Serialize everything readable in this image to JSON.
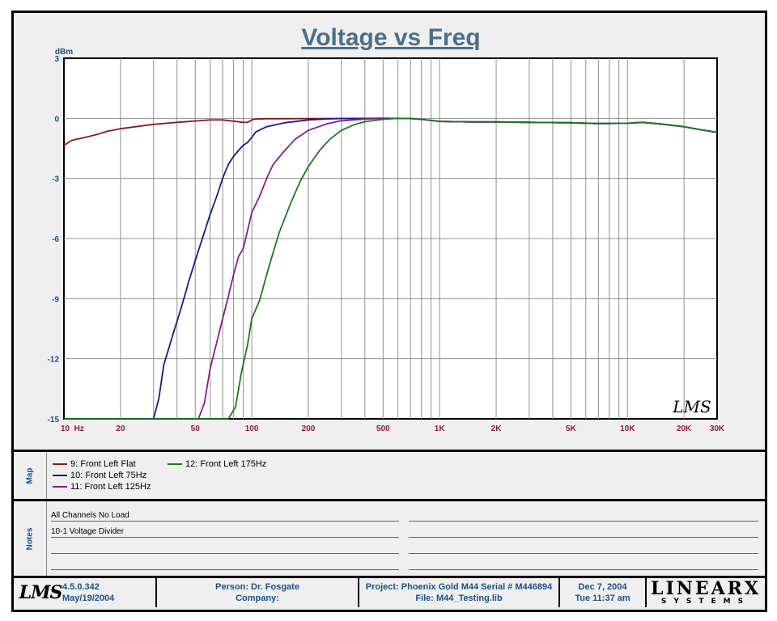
{
  "chart_data": {
    "type": "line",
    "title": "Voltage vs Freq",
    "ylabel": "dBm",
    "xlabel": "",
    "xscale": "log",
    "xlim": [
      10,
      30000
    ],
    "ylim": [
      -15,
      3
    ],
    "grid": true,
    "yticks": [
      3,
      0,
      -3,
      -6,
      -9,
      -12,
      -15
    ],
    "ytick_labels": [
      "3",
      "0",
      "-3",
      "-6",
      "-9",
      "-12",
      "-15"
    ],
    "xticks": [
      10,
      20,
      50,
      100,
      200,
      500,
      1000,
      2000,
      5000,
      10000,
      20000,
      30000
    ],
    "xtick_labels": [
      "10  Hz",
      "20",
      "50",
      "100",
      "200",
      "500",
      "1K",
      "2K",
      "5K",
      "10K",
      "20K",
      "30K"
    ],
    "series": [
      {
        "name": "9: Front Left Flat",
        "color": "#8b1a1a",
        "points": [
          [
            10,
            -1.35
          ],
          [
            11,
            -1.1
          ],
          [
            13,
            -0.95
          ],
          [
            15,
            -0.8
          ],
          [
            17,
            -0.65
          ],
          [
            20,
            -0.52
          ],
          [
            25,
            -0.4
          ],
          [
            30,
            -0.3
          ],
          [
            40,
            -0.2
          ],
          [
            50,
            -0.13
          ],
          [
            60,
            -0.08
          ],
          [
            70,
            -0.08
          ],
          [
            80,
            -0.14
          ],
          [
            90,
            -0.2
          ],
          [
            95,
            -0.2
          ],
          [
            100,
            -0.08
          ],
          [
            105,
            -0.04
          ],
          [
            120,
            -0.02
          ],
          [
            150,
            -0.02
          ],
          [
            200,
            -0.01
          ],
          [
            300,
            -0.01
          ],
          [
            500,
            0
          ],
          [
            700,
            -0.01
          ],
          [
            800,
            -0.05
          ],
          [
            1000,
            -0.15
          ],
          [
            1500,
            -0.18
          ],
          [
            2000,
            -0.18
          ],
          [
            3000,
            -0.2
          ],
          [
            5000,
            -0.22
          ],
          [
            7000,
            -0.26
          ],
          [
            10000,
            -0.25
          ],
          [
            12000,
            -0.2
          ],
          [
            15000,
            -0.28
          ],
          [
            20000,
            -0.42
          ],
          [
            25000,
            -0.58
          ],
          [
            30000,
            -0.7
          ]
        ]
      },
      {
        "name": "10: Front Left 75Hz",
        "color": "#1a1a8b",
        "points": [
          [
            30,
            -15
          ],
          [
            32,
            -14
          ],
          [
            34,
            -12.3
          ],
          [
            38,
            -10.8
          ],
          [
            42,
            -9.5
          ],
          [
            46,
            -8.2
          ],
          [
            50,
            -7.1
          ],
          [
            55,
            -5.9
          ],
          [
            60,
            -4.8
          ],
          [
            65,
            -3.9
          ],
          [
            70,
            -3.0
          ],
          [
            75,
            -2.3
          ],
          [
            80,
            -1.9
          ],
          [
            85,
            -1.6
          ],
          [
            90,
            -1.35
          ],
          [
            95,
            -1.2
          ],
          [
            100,
            -0.95
          ],
          [
            105,
            -0.68
          ],
          [
            120,
            -0.42
          ],
          [
            150,
            -0.22
          ],
          [
            200,
            -0.08
          ],
          [
            250,
            -0.03
          ],
          [
            300,
            -0.01
          ],
          [
            500,
            0
          ],
          [
            700,
            -0.01
          ],
          [
            800,
            -0.05
          ],
          [
            1000,
            -0.15
          ],
          [
            1500,
            -0.18
          ],
          [
            2000,
            -0.18
          ],
          [
            3000,
            -0.2
          ],
          [
            5000,
            -0.22
          ],
          [
            7000,
            -0.26
          ],
          [
            10000,
            -0.25
          ],
          [
            12000,
            -0.2
          ],
          [
            15000,
            -0.28
          ],
          [
            20000,
            -0.42
          ],
          [
            25000,
            -0.58
          ],
          [
            30000,
            -0.7
          ]
        ]
      },
      {
        "name": "11: Front Left 125Hz",
        "color": "#8b1a8b",
        "points": [
          [
            52,
            -15
          ],
          [
            56,
            -14.2
          ],
          [
            60,
            -12.5
          ],
          [
            65,
            -11.2
          ],
          [
            70,
            -10.0
          ],
          [
            75,
            -8.9
          ],
          [
            80,
            -7.8
          ],
          [
            85,
            -6.9
          ],
          [
            90,
            -6.5
          ],
          [
            95,
            -5.6
          ],
          [
            100,
            -4.7
          ],
          [
            110,
            -3.9
          ],
          [
            120,
            -3.0
          ],
          [
            130,
            -2.3
          ],
          [
            150,
            -1.6
          ],
          [
            170,
            -1.05
          ],
          [
            200,
            -0.6
          ],
          [
            250,
            -0.28
          ],
          [
            300,
            -0.12
          ],
          [
            400,
            -0.04
          ],
          [
            500,
            0
          ],
          [
            700,
            -0.01
          ],
          [
            800,
            -0.05
          ],
          [
            1000,
            -0.15
          ],
          [
            1500,
            -0.18
          ],
          [
            2000,
            -0.18
          ],
          [
            3000,
            -0.2
          ],
          [
            5000,
            -0.22
          ],
          [
            7000,
            -0.26
          ],
          [
            10000,
            -0.25
          ],
          [
            12000,
            -0.2
          ],
          [
            15000,
            -0.28
          ],
          [
            20000,
            -0.42
          ],
          [
            25000,
            -0.58
          ],
          [
            30000,
            -0.7
          ]
        ]
      },
      {
        "name": "12: Front Left 175Hz",
        "color": "#1a7a1a",
        "points": [
          [
            10,
            -15
          ],
          [
            75,
            -15
          ],
          [
            82,
            -14.4
          ],
          [
            88,
            -12.7
          ],
          [
            95,
            -11.3
          ],
          [
            100,
            -10.0
          ],
          [
            110,
            -9.1
          ],
          [
            120,
            -7.8
          ],
          [
            130,
            -6.7
          ],
          [
            140,
            -5.7
          ],
          [
            160,
            -4.3
          ],
          [
            180,
            -3.2
          ],
          [
            200,
            -2.4
          ],
          [
            230,
            -1.6
          ],
          [
            260,
            -1.05
          ],
          [
            300,
            -0.6
          ],
          [
            350,
            -0.32
          ],
          [
            400,
            -0.17
          ],
          [
            500,
            -0.05
          ],
          [
            600,
            0
          ],
          [
            700,
            -0.01
          ],
          [
            800,
            -0.05
          ],
          [
            1000,
            -0.15
          ],
          [
            1500,
            -0.18
          ],
          [
            2000,
            -0.18
          ],
          [
            3000,
            -0.2
          ],
          [
            5000,
            -0.22
          ],
          [
            7000,
            -0.26
          ],
          [
            10000,
            -0.25
          ],
          [
            12000,
            -0.2
          ],
          [
            15000,
            -0.28
          ],
          [
            20000,
            -0.42
          ],
          [
            25000,
            -0.58
          ],
          [
            30000,
            -0.7
          ]
        ]
      }
    ]
  },
  "colors": {
    "title": "#4a6f8a",
    "axis_labels": "#1a4f8a",
    "tick_x": "#8b1a3a",
    "grid": "#909090"
  },
  "watermark_logo": "LMS",
  "map": {
    "label": "Map",
    "items": [
      {
        "text": "9: Front Left Flat",
        "color": "#8b1a1a"
      },
      {
        "text": "10: Front Left 75Hz",
        "color": "#1a1a8b"
      },
      {
        "text": "11: Front Left 125Hz",
        "color": "#8b1a8b"
      },
      {
        "text": "12: Front Left 175Hz",
        "color": "#1a7a1a"
      }
    ]
  },
  "notes": {
    "label": "Notes",
    "lines": [
      "All Channels No Load",
      "10-1 Voltage Divider"
    ]
  },
  "footer": {
    "logo": "LMS",
    "version": "4.5.0.342",
    "build_date": "May/19/2004",
    "person": "Person: Dr. Fosgate",
    "company": "Company:",
    "project": "Project: Phoenix Gold M44 Serial # M446894",
    "file": "File: M44_Testing.lib",
    "date": "Dec  7, 2004",
    "time": "Tue 11:37 am",
    "brand_top": "LINEARX",
    "brand_bottom": "SYSTEMS"
  }
}
